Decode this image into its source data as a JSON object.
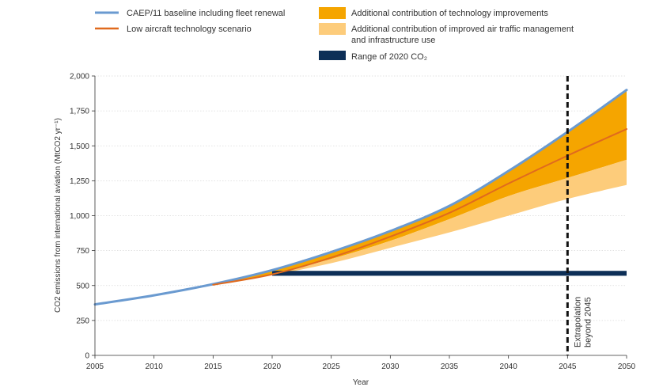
{
  "chart_data": {
    "type": "area",
    "xlabel": "Year",
    "ylabel": "CO2 emissions from international aviation (MtCO2 yr⁻¹)",
    "xlim": [
      2005,
      2050
    ],
    "ylim": [
      0,
      2000
    ],
    "x_ticks": [
      "2005",
      "2010",
      "2015",
      "2020",
      "2025",
      "2030",
      "2035",
      "2040",
      "2045",
      "2050"
    ],
    "y_ticks": [
      "0",
      "250",
      "500",
      "750",
      "1,000",
      "1,250",
      "1,500",
      "1,750",
      "2,000"
    ],
    "legend": {
      "baseline": "CAEP/11 baseline including fleet renewal",
      "low_tech": "Low aircraft technology scenario",
      "tech_improvements": "Additional contribution of technology improvements",
      "atm_infra_line1": "Additional contribution of improved air traffic management",
      "atm_infra_line2": "and infrastructure use",
      "range_2020": "Range of 2020 CO₂"
    },
    "x": [
      2005,
      2010,
      2015,
      2020,
      2025,
      2030,
      2035,
      2040,
      2045,
      2050
    ],
    "series": [
      {
        "name": "CAEP/11 baseline including fleet renewal",
        "color": "#6a9ad0",
        "values": [
          365,
          430,
          510,
          610,
          740,
          890,
          1070,
          1320,
          1600,
          1900
        ]
      },
      {
        "name": "Low aircraft technology scenario",
        "color": "#e06a1e",
        "values": [
          null,
          null,
          505,
          580,
          700,
          850,
          1020,
          1230,
          1430,
          1620
        ]
      }
    ],
    "bands": [
      {
        "name": "Additional contribution of technology improvements",
        "color": "#f5a500",
        "x": [
          2015,
          2020,
          2025,
          2030,
          2035,
          2040,
          2045,
          2050
        ],
        "upper": [
          510,
          610,
          740,
          890,
          1070,
          1320,
          1600,
          1900
        ],
        "lower": [
          505,
          580,
          690,
          820,
          975,
          1140,
          1270,
          1400
        ]
      },
      {
        "name": "Additional contribution of improved air traffic management and infrastructure use",
        "color": "#fdcc7b",
        "x": [
          2015,
          2020,
          2025,
          2030,
          2035,
          2040,
          2045,
          2050
        ],
        "upper": [
          505,
          580,
          690,
          820,
          975,
          1140,
          1270,
          1400
        ],
        "lower": [
          505,
          575,
          660,
          770,
          880,
          1000,
          1120,
          1220
        ]
      }
    ],
    "range_2020": {
      "name": "Range of 2020 CO₂",
      "color": "#0d2f57",
      "x_start": 2020,
      "x_end": 2050,
      "y_low": 570,
      "y_high": 605
    },
    "extrapolation_marker": {
      "x": 2045,
      "label_line1": "Extrapolation",
      "label_line2": "beyond 2045"
    }
  }
}
